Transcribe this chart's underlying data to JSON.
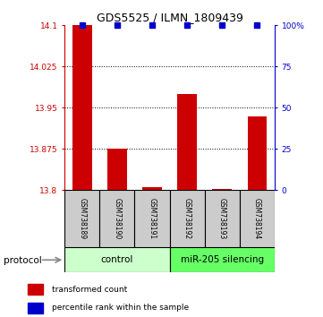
{
  "title": "GDS5525 / ILMN_1809439",
  "samples": [
    "GSM738189",
    "GSM738190",
    "GSM738191",
    "GSM738192",
    "GSM738193",
    "GSM738194"
  ],
  "red_values": [
    14.1,
    13.875,
    13.805,
    13.975,
    13.802,
    13.935
  ],
  "blue_values": [
    100,
    100,
    100,
    100,
    100,
    100
  ],
  "ylim_left": [
    13.8,
    14.1
  ],
  "ylim_right": [
    0,
    100
  ],
  "yticks_left": [
    13.8,
    13.875,
    13.95,
    14.025,
    14.1
  ],
  "yticks_right": [
    0,
    25,
    50,
    75,
    100
  ],
  "ytick_labels_left": [
    "13.8",
    "13.875",
    "13.95",
    "14.025",
    "14.1"
  ],
  "ytick_labels_right": [
    "0",
    "25",
    "50",
    "75",
    "100%"
  ],
  "groups": [
    {
      "label": "control",
      "start": 0,
      "end": 3,
      "color": "#ccffcc"
    },
    {
      "label": "miR-205 silencing",
      "start": 3,
      "end": 6,
      "color": "#66ff66"
    }
  ],
  "bar_color_red": "#cc0000",
  "dot_color_blue": "#0000cc",
  "sample_box_color": "#cccccc",
  "legend_red_label": "transformed count",
  "legend_blue_label": "percentile rank within the sample"
}
